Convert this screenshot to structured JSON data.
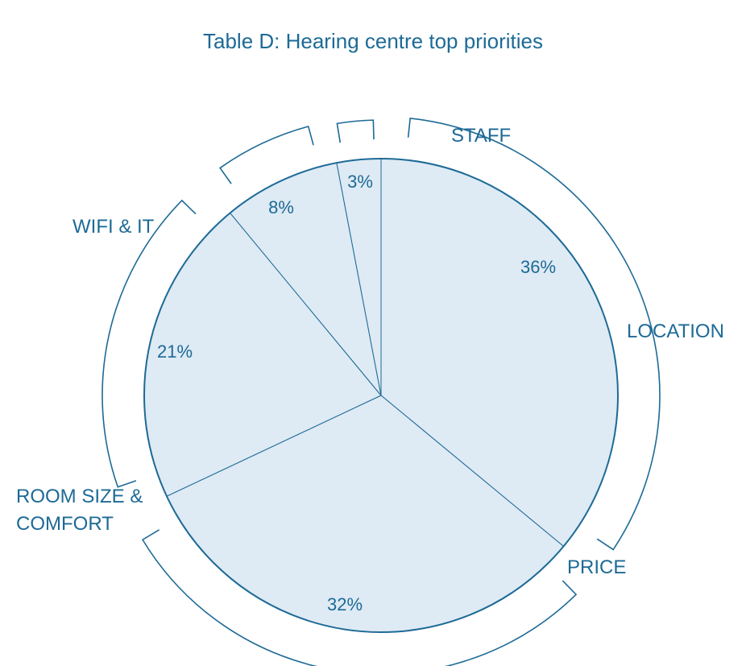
{
  "chart_data": {
    "type": "pie",
    "title": "Table D: Hearing centre top priorities",
    "slices": [
      {
        "label": "LOCATION",
        "value": 36,
        "value_label": "36%"
      },
      {
        "label": "PRICE",
        "value": 32,
        "value_label": "32%"
      },
      {
        "label": "ROOM SIZE & COMFORT",
        "label_lines": [
          "ROOM SIZE &",
          "COMFORT"
        ],
        "value": 21,
        "value_label": "21%"
      },
      {
        "label": "WIFI & IT",
        "value": 8,
        "value_label": "8%"
      },
      {
        "label": "STAFF",
        "value": 3,
        "value_label": "3%"
      }
    ],
    "start": "12 o'clock",
    "direction": "clockwise",
    "legend": "none (callout labels around the pie)"
  },
  "colors": {
    "fill": "#deeaf4",
    "stroke": "#1d6a96",
    "text": "#1d6a96"
  }
}
